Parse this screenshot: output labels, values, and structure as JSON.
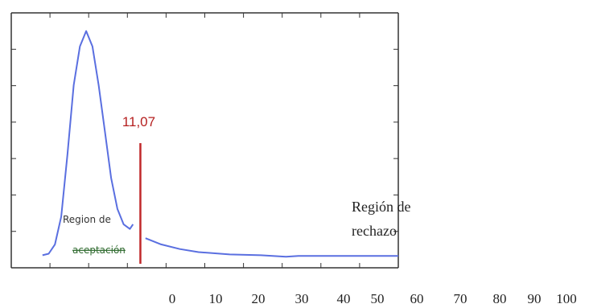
{
  "chart_data": {
    "type": "line",
    "title": "",
    "xlabel": "",
    "ylabel": "",
    "x_ticks": [
      "0",
      "10",
      "20",
      "30",
      "40",
      "50",
      "60",
      "70",
      "80",
      "90",
      "100"
    ],
    "series": [
      {
        "color": "#5a6fe0",
        "points": [
          [
            -5.0,
            0.005
          ],
          [
            -4.0,
            0.006
          ],
          [
            -3.0,
            0.012
          ],
          [
            -2.0,
            0.03
          ],
          [
            -1.0,
            0.07
          ],
          [
            0.0,
            0.115
          ],
          [
            1.0,
            0.14
          ],
          [
            2.0,
            0.15
          ],
          [
            3.0,
            0.14
          ],
          [
            4.0,
            0.115
          ],
          [
            5.0,
            0.085
          ],
          [
            6.0,
            0.055
          ],
          [
            7.0,
            0.035
          ],
          [
            8.0,
            0.025
          ],
          [
            9.0,
            0.022
          ],
          [
            9.5,
            0.025
          ]
        ]
      },
      {
        "color": "#5a6fe0",
        "points": [
          [
            11.5,
            0.016
          ],
          [
            14.0,
            0.012
          ],
          [
            17.0,
            0.009
          ],
          [
            20.0,
            0.007
          ],
          [
            25.0,
            0.0055
          ],
          [
            30.0,
            0.005
          ],
          [
            34.0,
            0.004
          ],
          [
            36.0,
            0.0045
          ],
          [
            40.0,
            0.0045
          ],
          [
            45.0,
            0.0045
          ],
          [
            50.0,
            0.0045
          ],
          [
            52.0,
            0.0045
          ]
        ]
      }
    ],
    "critical_value": {
      "x": 11.07,
      "label": "11,07",
      "color": "#c0282a"
    },
    "annotations": {
      "accept_line1": "Region de",
      "accept_line2": "aceptación",
      "reject_line1": "Región de",
      "reject_line2": "rechazo"
    },
    "xlim": [
      -10,
      52
    ],
    "ylim": [
      0,
      0.155
    ],
    "grid": false,
    "legend": "none"
  }
}
